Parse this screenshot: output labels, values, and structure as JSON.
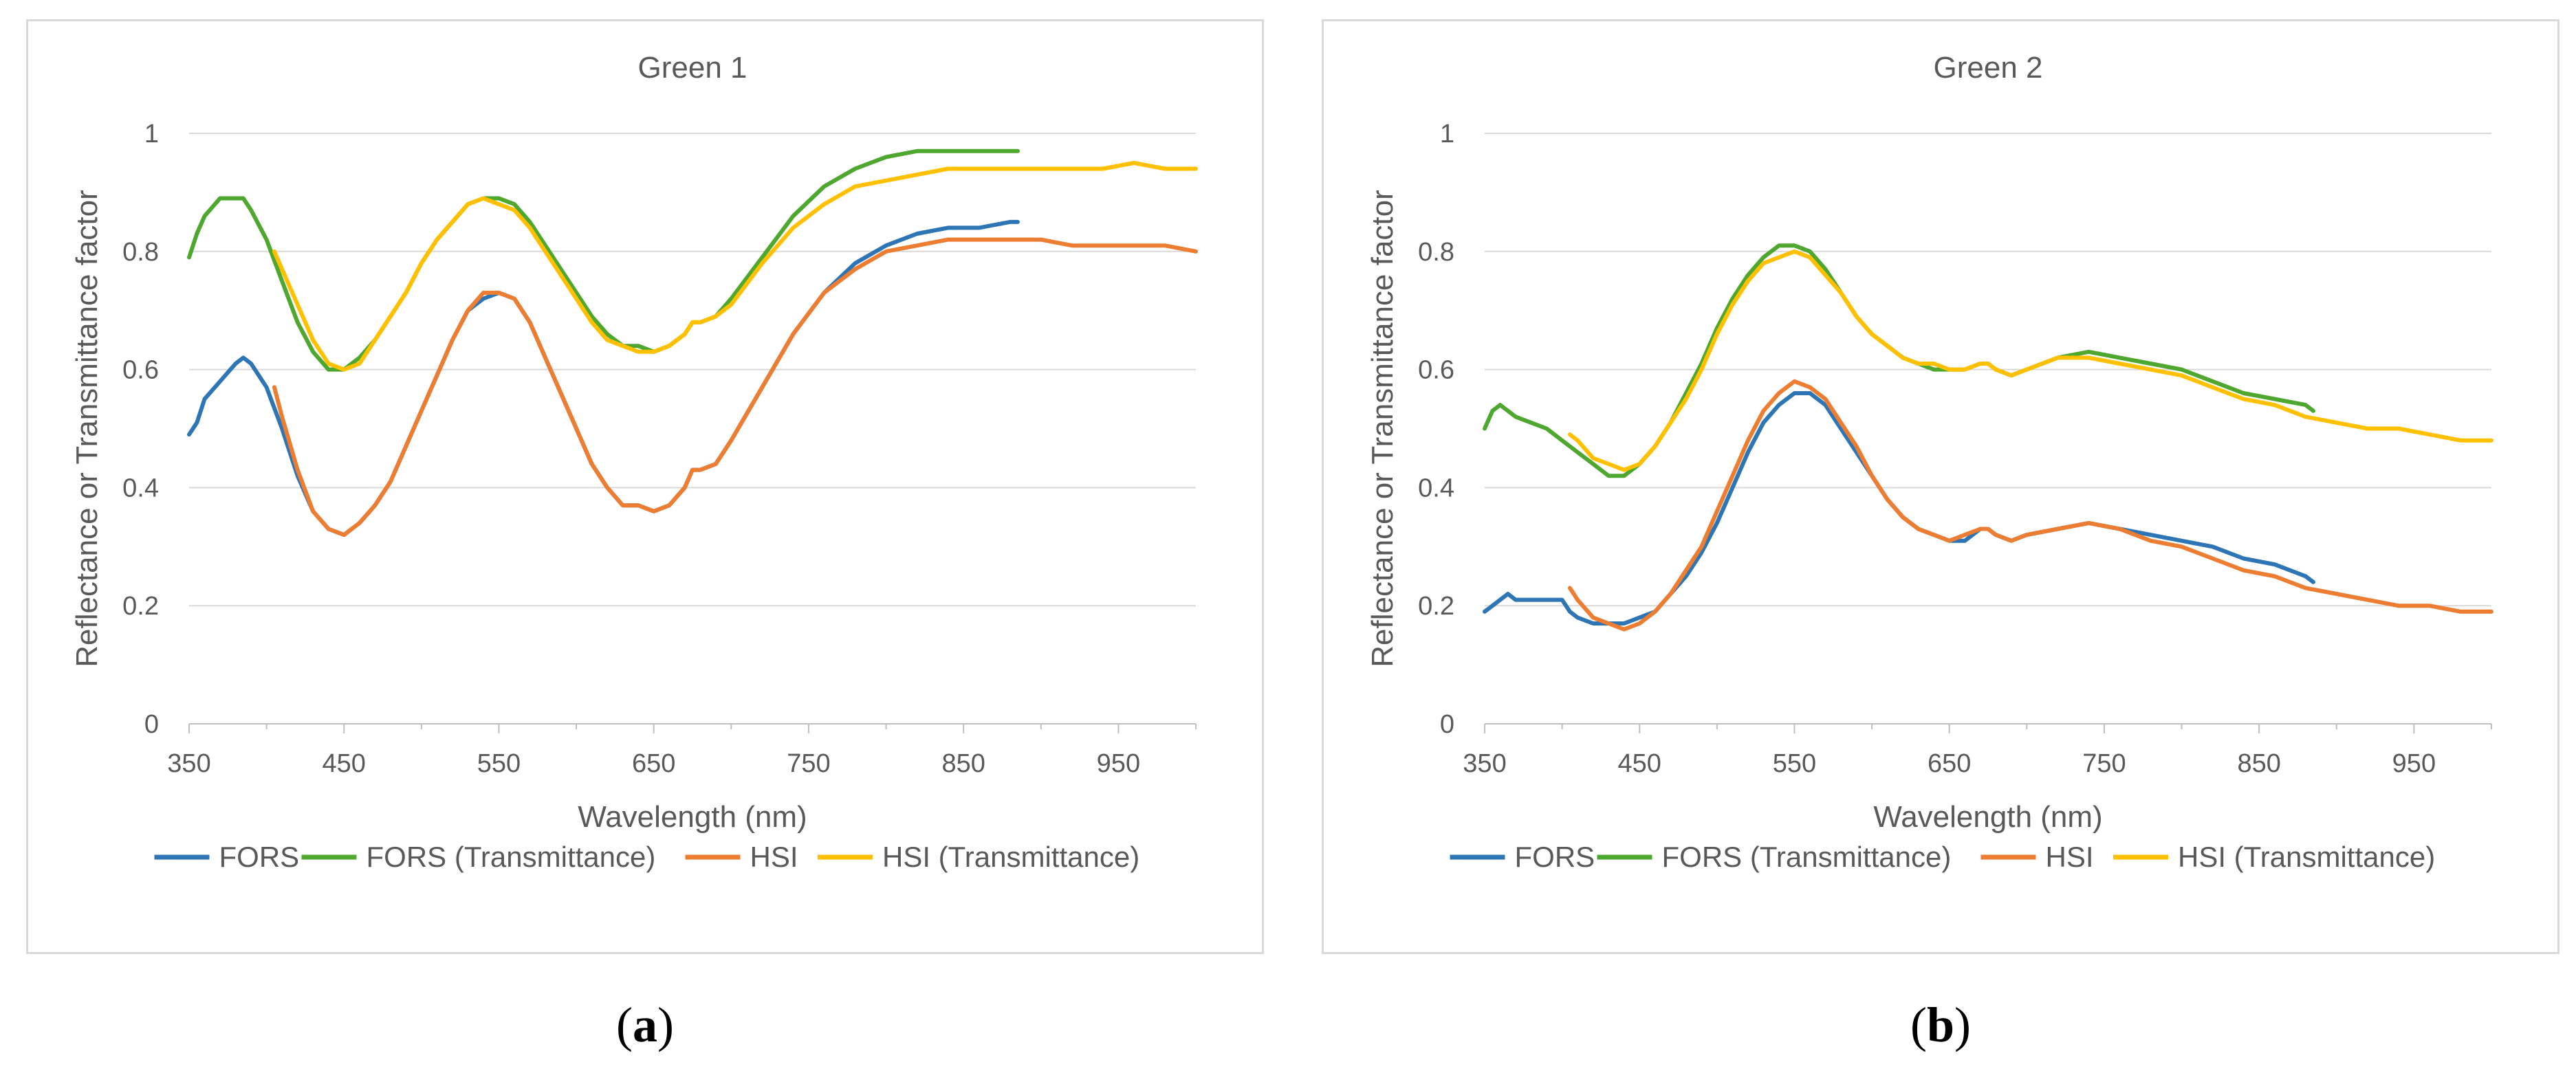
{
  "captions": {
    "a": "a",
    "b": "b"
  },
  "chart_data": [
    {
      "type": "line",
      "title": "Green 1",
      "xlabel": "Wavelength (nm)",
      "ylabel": "Reflectance or Transmittance factor",
      "xlim": [
        350,
        1000
      ],
      "ylim": [
        0,
        1
      ],
      "xticks": [
        350,
        450,
        550,
        650,
        750,
        850,
        950
      ],
      "yticks": [
        0,
        0.2,
        0.4,
        0.6,
        0.8,
        1
      ],
      "xtick_labels": [
        "350",
        "450",
        "550",
        "650",
        "750",
        "850",
        "950"
      ],
      "ytick_labels": [
        "0",
        "0.2",
        "0.4",
        "0.6",
        "0.8",
        "1"
      ],
      "legend_position": "bottom",
      "series": [
        {
          "name": "FORS",
          "color": "#2e75b6",
          "x": [
            350,
            355,
            360,
            370,
            380,
            385,
            390,
            400,
            410,
            420,
            430,
            440,
            450,
            460,
            470,
            480,
            490,
            500,
            510,
            520,
            530,
            540,
            550,
            560,
            570,
            580,
            590,
            600,
            610,
            620,
            630,
            640,
            650,
            660,
            670,
            675,
            680,
            690,
            700,
            720,
            740,
            760,
            780,
            800,
            820,
            840,
            860,
            880,
            885
          ],
          "y": [
            0.49,
            0.51,
            0.55,
            0.58,
            0.61,
            0.62,
            0.61,
            0.57,
            0.5,
            0.42,
            0.36,
            0.33,
            0.32,
            0.34,
            0.37,
            0.41,
            0.47,
            0.53,
            0.59,
            0.65,
            0.7,
            0.72,
            0.73,
            0.72,
            0.68,
            0.62,
            0.56,
            0.5,
            0.44,
            0.4,
            0.37,
            0.37,
            0.36,
            0.37,
            0.4,
            0.43,
            0.43,
            0.44,
            0.48,
            0.57,
            0.66,
            0.73,
            0.78,
            0.81,
            0.83,
            0.84,
            0.84,
            0.85,
            0.85
          ]
        },
        {
          "name": "FORS (Transmittance)",
          "color": "#4ea72e",
          "x": [
            350,
            355,
            360,
            370,
            380,
            385,
            390,
            400,
            410,
            420,
            430,
            440,
            450,
            460,
            470,
            480,
            490,
            500,
            510,
            520,
            530,
            540,
            550,
            560,
            570,
            580,
            590,
            600,
            610,
            620,
            630,
            640,
            650,
            660,
            670,
            675,
            680,
            690,
            700,
            720,
            740,
            760,
            780,
            800,
            820,
            840,
            860,
            880,
            885
          ],
          "y": [
            0.79,
            0.83,
            0.86,
            0.89,
            0.89,
            0.89,
            0.87,
            0.82,
            0.75,
            0.68,
            0.63,
            0.6,
            0.6,
            0.62,
            0.65,
            0.69,
            0.73,
            0.78,
            0.82,
            0.85,
            0.88,
            0.89,
            0.89,
            0.88,
            0.85,
            0.81,
            0.77,
            0.73,
            0.69,
            0.66,
            0.64,
            0.64,
            0.63,
            0.64,
            0.66,
            0.68,
            0.68,
            0.69,
            0.72,
            0.79,
            0.86,
            0.91,
            0.94,
            0.96,
            0.97,
            0.97,
            0.97,
            0.97,
            0.97
          ]
        },
        {
          "name": "HSI",
          "color": "#ed7d31",
          "x": [
            405,
            410,
            420,
            430,
            440,
            450,
            460,
            470,
            480,
            490,
            500,
            510,
            520,
            530,
            540,
            550,
            560,
            570,
            580,
            590,
            600,
            610,
            620,
            630,
            640,
            650,
            660,
            670,
            675,
            680,
            690,
            700,
            720,
            740,
            760,
            780,
            800,
            820,
            840,
            860,
            880,
            900,
            920,
            940,
            960,
            980,
            1000
          ],
          "y": [
            0.57,
            0.52,
            0.43,
            0.36,
            0.33,
            0.32,
            0.34,
            0.37,
            0.41,
            0.47,
            0.53,
            0.59,
            0.65,
            0.7,
            0.73,
            0.73,
            0.72,
            0.68,
            0.62,
            0.56,
            0.5,
            0.44,
            0.4,
            0.37,
            0.37,
            0.36,
            0.37,
            0.4,
            0.43,
            0.43,
            0.44,
            0.48,
            0.57,
            0.66,
            0.73,
            0.77,
            0.8,
            0.81,
            0.82,
            0.82,
            0.82,
            0.82,
            0.81,
            0.81,
            0.81,
            0.81,
            0.8
          ]
        },
        {
          "name": "HSI (Transmittance)",
          "color": "#ffc000",
          "x": [
            405,
            410,
            420,
            430,
            440,
            450,
            460,
            470,
            480,
            490,
            500,
            510,
            520,
            530,
            540,
            550,
            560,
            570,
            580,
            590,
            600,
            610,
            620,
            630,
            640,
            650,
            660,
            670,
            675,
            680,
            690,
            700,
            720,
            740,
            760,
            780,
            800,
            820,
            840,
            860,
            880,
            900,
            920,
            940,
            960,
            980,
            1000
          ],
          "y": [
            0.8,
            0.77,
            0.71,
            0.65,
            0.61,
            0.6,
            0.61,
            0.65,
            0.69,
            0.73,
            0.78,
            0.82,
            0.85,
            0.88,
            0.89,
            0.88,
            0.87,
            0.84,
            0.8,
            0.76,
            0.72,
            0.68,
            0.65,
            0.64,
            0.63,
            0.63,
            0.64,
            0.66,
            0.68,
            0.68,
            0.69,
            0.71,
            0.78,
            0.84,
            0.88,
            0.91,
            0.92,
            0.93,
            0.94,
            0.94,
            0.94,
            0.94,
            0.94,
            0.94,
            0.95,
            0.94,
            0.94
          ]
        }
      ]
    },
    {
      "type": "line",
      "title": "Green 2",
      "xlabel": "Wavelength (nm)",
      "ylabel": "Reflectance or Transmittance factor",
      "xlim": [
        350,
        1000
      ],
      "ylim": [
        0,
        1
      ],
      "xticks": [
        350,
        450,
        550,
        650,
        750,
        850,
        950
      ],
      "yticks": [
        0,
        0.2,
        0.4,
        0.6,
        0.8,
        1
      ],
      "xtick_labels": [
        "350",
        "450",
        "550",
        "650",
        "750",
        "850",
        "950"
      ],
      "ytick_labels": [
        "0",
        "0.2",
        "0.4",
        "0.6",
        "0.8",
        "1"
      ],
      "legend_position": "bottom",
      "series": [
        {
          "name": "FORS",
          "color": "#2e75b6",
          "x": [
            350,
            355,
            360,
            365,
            370,
            380,
            390,
            400,
            405,
            410,
            420,
            430,
            440,
            450,
            460,
            470,
            480,
            490,
            500,
            510,
            520,
            530,
            540,
            550,
            560,
            570,
            580,
            590,
            600,
            610,
            620,
            630,
            640,
            650,
            660,
            670,
            675,
            680,
            690,
            700,
            720,
            740,
            760,
            780,
            800,
            820,
            840,
            860,
            880,
            885
          ],
          "y": [
            0.19,
            0.2,
            0.21,
            0.22,
            0.21,
            0.21,
            0.21,
            0.21,
            0.19,
            0.18,
            0.17,
            0.17,
            0.17,
            0.18,
            0.19,
            0.22,
            0.25,
            0.29,
            0.34,
            0.4,
            0.46,
            0.51,
            0.54,
            0.56,
            0.56,
            0.54,
            0.5,
            0.46,
            0.42,
            0.38,
            0.35,
            0.33,
            0.32,
            0.31,
            0.31,
            0.33,
            0.33,
            0.32,
            0.31,
            0.32,
            0.33,
            0.34,
            0.33,
            0.32,
            0.31,
            0.3,
            0.28,
            0.27,
            0.25,
            0.24
          ]
        },
        {
          "name": "FORS (Transmittance)",
          "color": "#4ea72e",
          "x": [
            350,
            355,
            360,
            370,
            380,
            390,
            400,
            410,
            420,
            430,
            440,
            450,
            460,
            470,
            480,
            490,
            500,
            510,
            520,
            530,
            540,
            550,
            560,
            570,
            580,
            590,
            600,
            610,
            620,
            630,
            640,
            650,
            660,
            670,
            675,
            680,
            690,
            700,
            720,
            740,
            760,
            780,
            800,
            820,
            840,
            860,
            880,
            885
          ],
          "y": [
            0.5,
            0.53,
            0.54,
            0.52,
            0.51,
            0.5,
            0.48,
            0.46,
            0.44,
            0.42,
            0.42,
            0.44,
            0.47,
            0.51,
            0.56,
            0.61,
            0.67,
            0.72,
            0.76,
            0.79,
            0.81,
            0.81,
            0.8,
            0.77,
            0.73,
            0.69,
            0.66,
            0.64,
            0.62,
            0.61,
            0.6,
            0.6,
            0.6,
            0.61,
            0.61,
            0.6,
            0.59,
            0.6,
            0.62,
            0.63,
            0.62,
            0.61,
            0.6,
            0.58,
            0.56,
            0.55,
            0.54,
            0.53
          ]
        },
        {
          "name": "HSI",
          "color": "#ed7d31",
          "x": [
            405,
            410,
            420,
            430,
            440,
            450,
            460,
            470,
            480,
            490,
            500,
            510,
            520,
            530,
            540,
            550,
            560,
            570,
            580,
            590,
            600,
            610,
            620,
            630,
            640,
            650,
            660,
            670,
            675,
            680,
            690,
            700,
            720,
            740,
            760,
            780,
            800,
            820,
            840,
            860,
            880,
            900,
            920,
            940,
            960,
            980,
            1000
          ],
          "y": [
            0.23,
            0.21,
            0.18,
            0.17,
            0.16,
            0.17,
            0.19,
            0.22,
            0.26,
            0.3,
            0.36,
            0.42,
            0.48,
            0.53,
            0.56,
            0.58,
            0.57,
            0.55,
            0.51,
            0.47,
            0.42,
            0.38,
            0.35,
            0.33,
            0.32,
            0.31,
            0.32,
            0.33,
            0.33,
            0.32,
            0.31,
            0.32,
            0.33,
            0.34,
            0.33,
            0.31,
            0.3,
            0.28,
            0.26,
            0.25,
            0.23,
            0.22,
            0.21,
            0.2,
            0.2,
            0.19,
            0.19
          ]
        },
        {
          "name": "HSI (Transmittance)",
          "color": "#ffc000",
          "x": [
            405,
            410,
            420,
            430,
            440,
            450,
            460,
            470,
            480,
            490,
            500,
            510,
            520,
            530,
            540,
            550,
            560,
            570,
            580,
            590,
            600,
            610,
            620,
            630,
            640,
            650,
            660,
            670,
            675,
            680,
            690,
            700,
            720,
            740,
            760,
            780,
            800,
            820,
            840,
            860,
            880,
            900,
            920,
            940,
            960,
            980,
            1000
          ],
          "y": [
            0.49,
            0.48,
            0.45,
            0.44,
            0.43,
            0.44,
            0.47,
            0.51,
            0.55,
            0.6,
            0.66,
            0.71,
            0.75,
            0.78,
            0.79,
            0.8,
            0.79,
            0.76,
            0.73,
            0.69,
            0.66,
            0.64,
            0.62,
            0.61,
            0.61,
            0.6,
            0.6,
            0.61,
            0.61,
            0.6,
            0.59,
            0.6,
            0.62,
            0.62,
            0.61,
            0.6,
            0.59,
            0.57,
            0.55,
            0.54,
            0.52,
            0.51,
            0.5,
            0.5,
            0.49,
            0.48,
            0.48
          ]
        }
      ]
    }
  ]
}
